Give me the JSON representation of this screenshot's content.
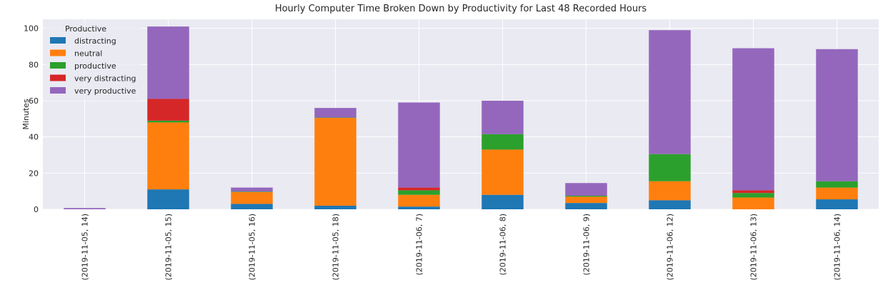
{
  "chart_data": {
    "type": "bar",
    "stacked": true,
    "title": "Hourly Computer Time Broken Down by Productivity for Last 48 Recorded Hours",
    "xlabel": "",
    "ylabel": "Minutes",
    "ylim": [
      0,
      105
    ],
    "yticks": [
      0,
      20,
      40,
      60,
      80,
      100
    ],
    "grid": true,
    "legend": {
      "title": "Productive",
      "placement": "top-left"
    },
    "categories": [
      "(2019-11-05, 14)",
      "(2019-11-05, 15)",
      "(2019-11-05, 16)",
      "(2019-11-05, 18)",
      "(2019-11-06, 7)",
      "(2019-11-06, 8)",
      "(2019-11-06, 9)",
      "(2019-11-06, 12)",
      "(2019-11-06, 13)",
      "(2019-11-06, 14)"
    ],
    "series": [
      {
        "name": "distracting",
        "color": "#1f77b4",
        "values": [
          0,
          11,
          3,
          2,
          1.5,
          8,
          3.5,
          5,
          0,
          5.5
        ]
      },
      {
        "name": "neutral",
        "color": "#ff7f0e",
        "values": [
          0,
          37,
          6.5,
          48.5,
          6.5,
          25,
          3.5,
          10.5,
          6.5,
          6.5
        ]
      },
      {
        "name": "productive",
        "color": "#2ca02c",
        "values": [
          0,
          1,
          0.3,
          0.2,
          2.5,
          8.5,
          0.5,
          15,
          2.5,
          3.5
        ]
      },
      {
        "name": "very distracting",
        "color": "#d62728",
        "values": [
          0,
          12,
          0,
          0,
          1.5,
          0,
          0,
          0,
          1.5,
          0
        ]
      },
      {
        "name": "very productive",
        "color": "#9467bd",
        "values": [
          0.7,
          40,
          2.2,
          5.3,
          47,
          18.5,
          7,
          68.5,
          78.5,
          73
        ]
      }
    ]
  }
}
